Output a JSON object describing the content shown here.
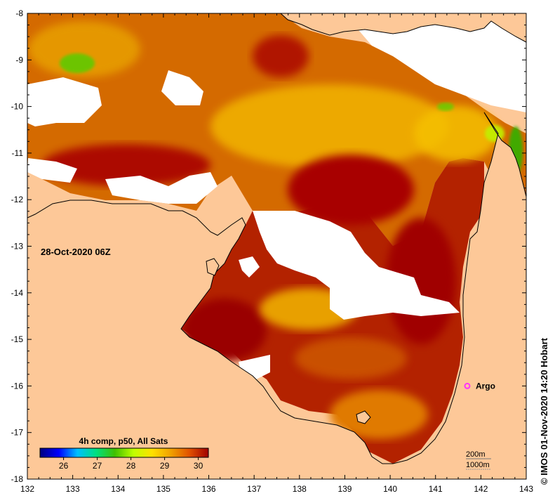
{
  "map": {
    "date_label": "28-Oct-2020 06Z",
    "credit": "© IMOS 01-Nov-2020 14:20 Hobart",
    "lon_ticks": [
      "132",
      "133",
      "134",
      "135",
      "136",
      "137",
      "138",
      "139",
      "140",
      "141",
      "142",
      "143"
    ],
    "lat_ticks": [
      "-8",
      "-9",
      "-10",
      "-11",
      "-12",
      "-13",
      "-14",
      "-15",
      "-16",
      "-17",
      "-18"
    ],
    "lon_range": [
      132,
      143
    ],
    "lat_range": [
      -18,
      -8
    ],
    "marker": {
      "label": "Argo",
      "lon": 141.7,
      "lat": -16.0,
      "color": "#ff33ff"
    },
    "contours": {
      "depth_1": "200m",
      "depth_2": "1000m"
    },
    "colorbar": {
      "title": "4h comp, p50, All Sats",
      "ticks": [
        "26",
        "27",
        "28",
        "29",
        "30"
      ],
      "range": [
        25.3,
        30.3
      ],
      "colors": [
        "#000080",
        "#0000ff",
        "#00c0ff",
        "#00e080",
        "#40c000",
        "#c0ff00",
        "#ffe000",
        "#f0a000",
        "#e05000",
        "#a00000"
      ]
    },
    "colors": {
      "land": "#fdc898",
      "cloud": "#ffffff",
      "sea_warm": "#a80000",
      "sea_mid": "#e06000",
      "sea_cool": "#f0b000"
    }
  }
}
